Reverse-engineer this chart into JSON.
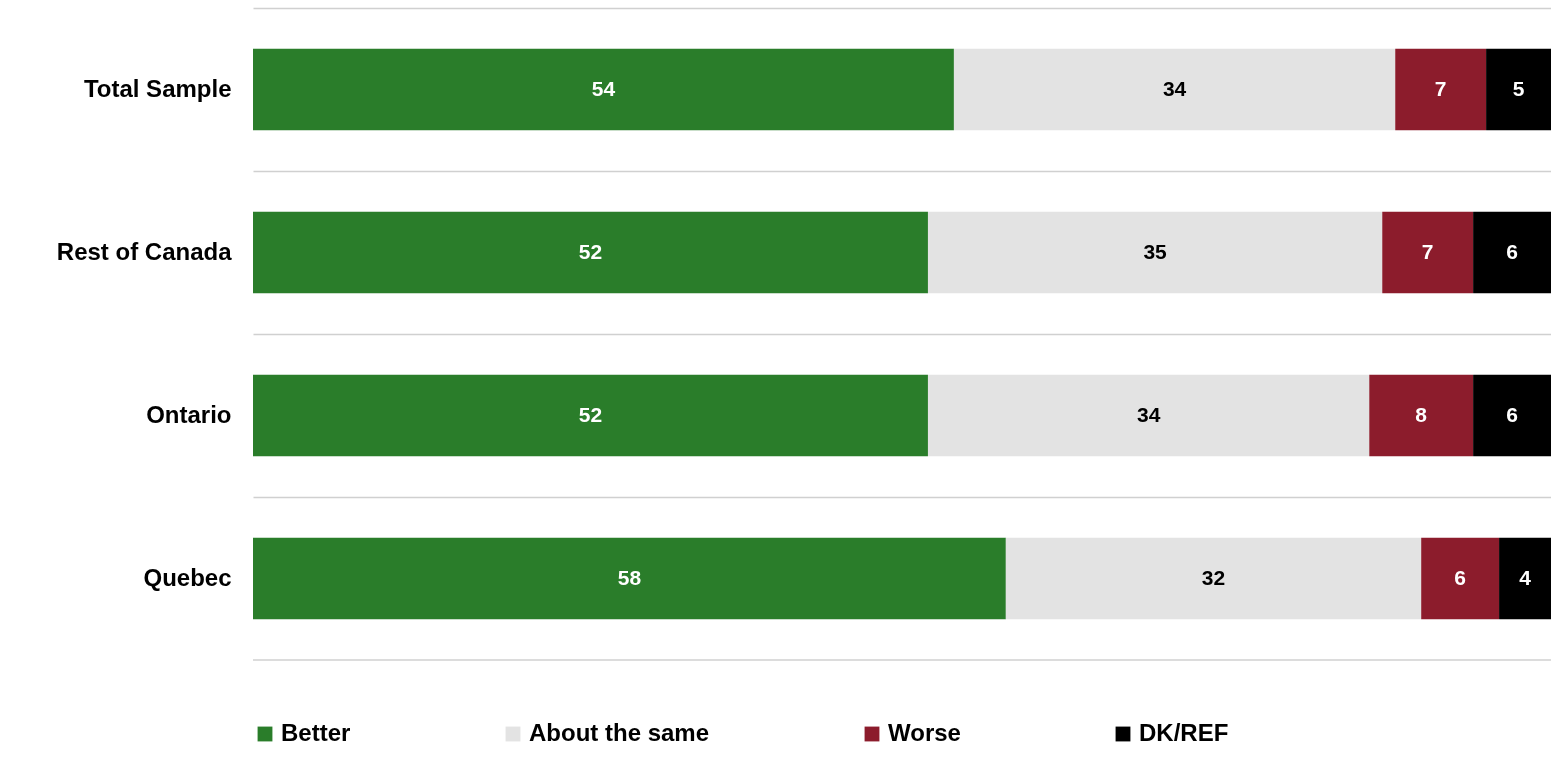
{
  "chart_data": {
    "type": "bar",
    "orientation": "horizontal",
    "stacked": true,
    "data_labels": true,
    "tick_labels": "y",
    "grid": "y",
    "legend": "bottom",
    "xlim": [
      0,
      100
    ],
    "categories": [
      "Total Sample",
      "Rest of Canada",
      "Ontario",
      "Quebec"
    ],
    "series": [
      {
        "name": "Better",
        "color": "#2a7d2a",
        "values": [
          54,
          52,
          52,
          58
        ]
      },
      {
        "name": "About the same",
        "color": "#e3e3e3",
        "values": [
          34,
          35,
          34,
          32
        ]
      },
      {
        "name": "Worse",
        "color": "#8c1c2c",
        "values": [
          7,
          7,
          8,
          6
        ]
      },
      {
        "name": "DK/REF",
        "color": "#000000",
        "values": [
          5,
          6,
          6,
          4
        ]
      }
    ]
  }
}
